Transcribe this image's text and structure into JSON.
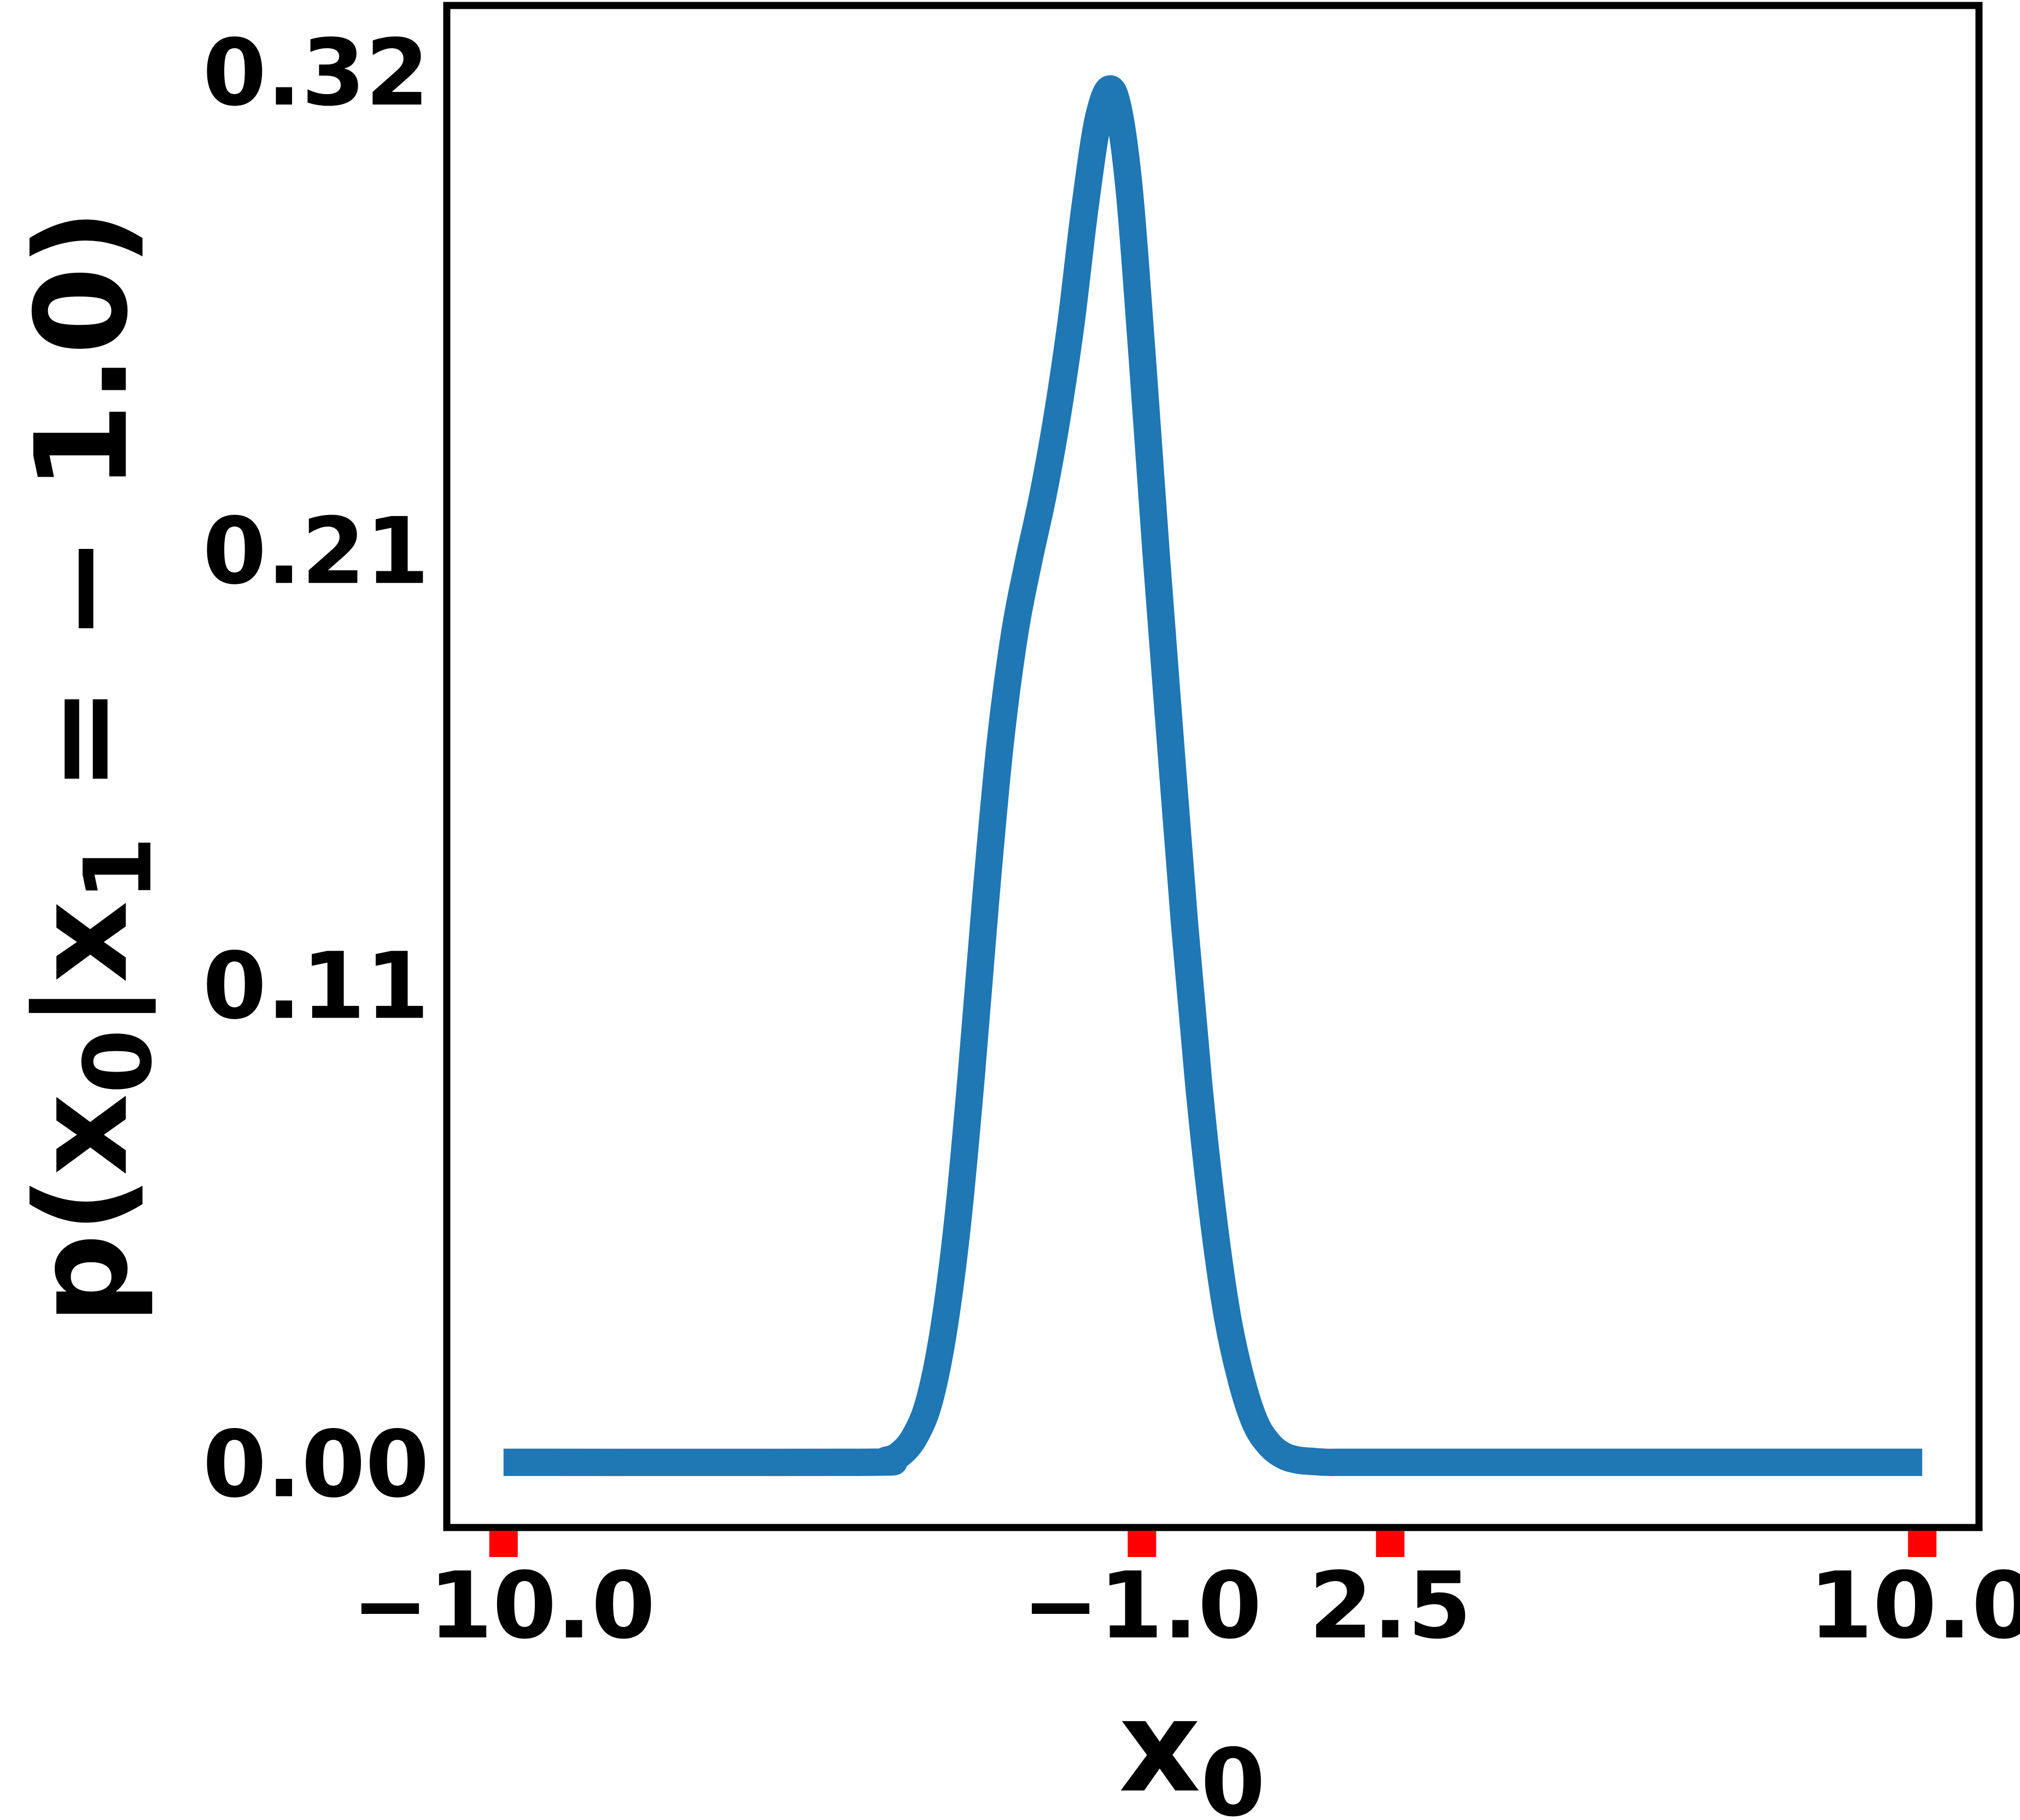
{
  "chart_data": {
    "type": "line",
    "title": "",
    "xlabel": "x",
    "xlabel_sub": "0",
    "ylabel": "p(x",
    "ylabel_sub0": "0",
    "ylabel_mid": "|x",
    "ylabel_sub1": "1",
    "ylabel_rest": " = − 1.0)",
    "xlim": [
      -10.8,
      10.8
    ],
    "ylim": [
      -0.015,
      0.335
    ],
    "x_ticks": [
      {
        "value": -10.0,
        "label": "−10.0"
      },
      {
        "value": -1.0,
        "label": "−1.0"
      },
      {
        "value": 2.5,
        "label": "2.5"
      },
      {
        "value": 10.0,
        "label": "10.0"
      }
    ],
    "y_ticks": [
      {
        "value": 0.0,
        "label": "0.00"
      },
      {
        "value": 0.11,
        "label": "0.11"
      },
      {
        "value": 0.21,
        "label": "0.21"
      },
      {
        "value": 0.32,
        "label": "0.32"
      }
    ],
    "grid": false,
    "colors": {
      "line": "#1f77b4",
      "tick_marks": "#ff0000",
      "frame": "#000000"
    },
    "series": [
      {
        "x": [
          -10.0,
          -5.0,
          -4.6,
          -4.4,
          -4.2,
          -4.0,
          -3.8,
          -3.6,
          -3.4,
          -3.2,
          -3.0,
          -2.8,
          -2.6,
          -2.4,
          -2.2,
          -2.0,
          -1.8,
          -1.6,
          -1.4,
          -1.2,
          -1.0,
          -0.8,
          -0.6,
          -0.4,
          -0.2,
          0.0,
          0.2,
          0.4,
          0.6,
          0.8,
          1.0,
          1.2,
          1.4,
          1.6,
          1.8,
          2.0,
          2.2,
          2.5,
          3.0,
          10.0
        ],
        "y": [
          0.0,
          0.0,
          0.0005,
          0.002,
          0.006,
          0.014,
          0.03,
          0.055,
          0.09,
          0.13,
          0.165,
          0.19,
          0.207,
          0.222,
          0.24,
          0.262,
          0.289,
          0.31,
          0.315,
          0.296,
          0.255,
          0.209,
          0.166,
          0.124,
          0.087,
          0.057,
          0.034,
          0.019,
          0.009,
          0.004,
          0.0015,
          0.0005,
          0.0002,
          0.0,
          0.0,
          0.0,
          0.0,
          0.0,
          0.0,
          0.0
        ]
      }
    ]
  }
}
